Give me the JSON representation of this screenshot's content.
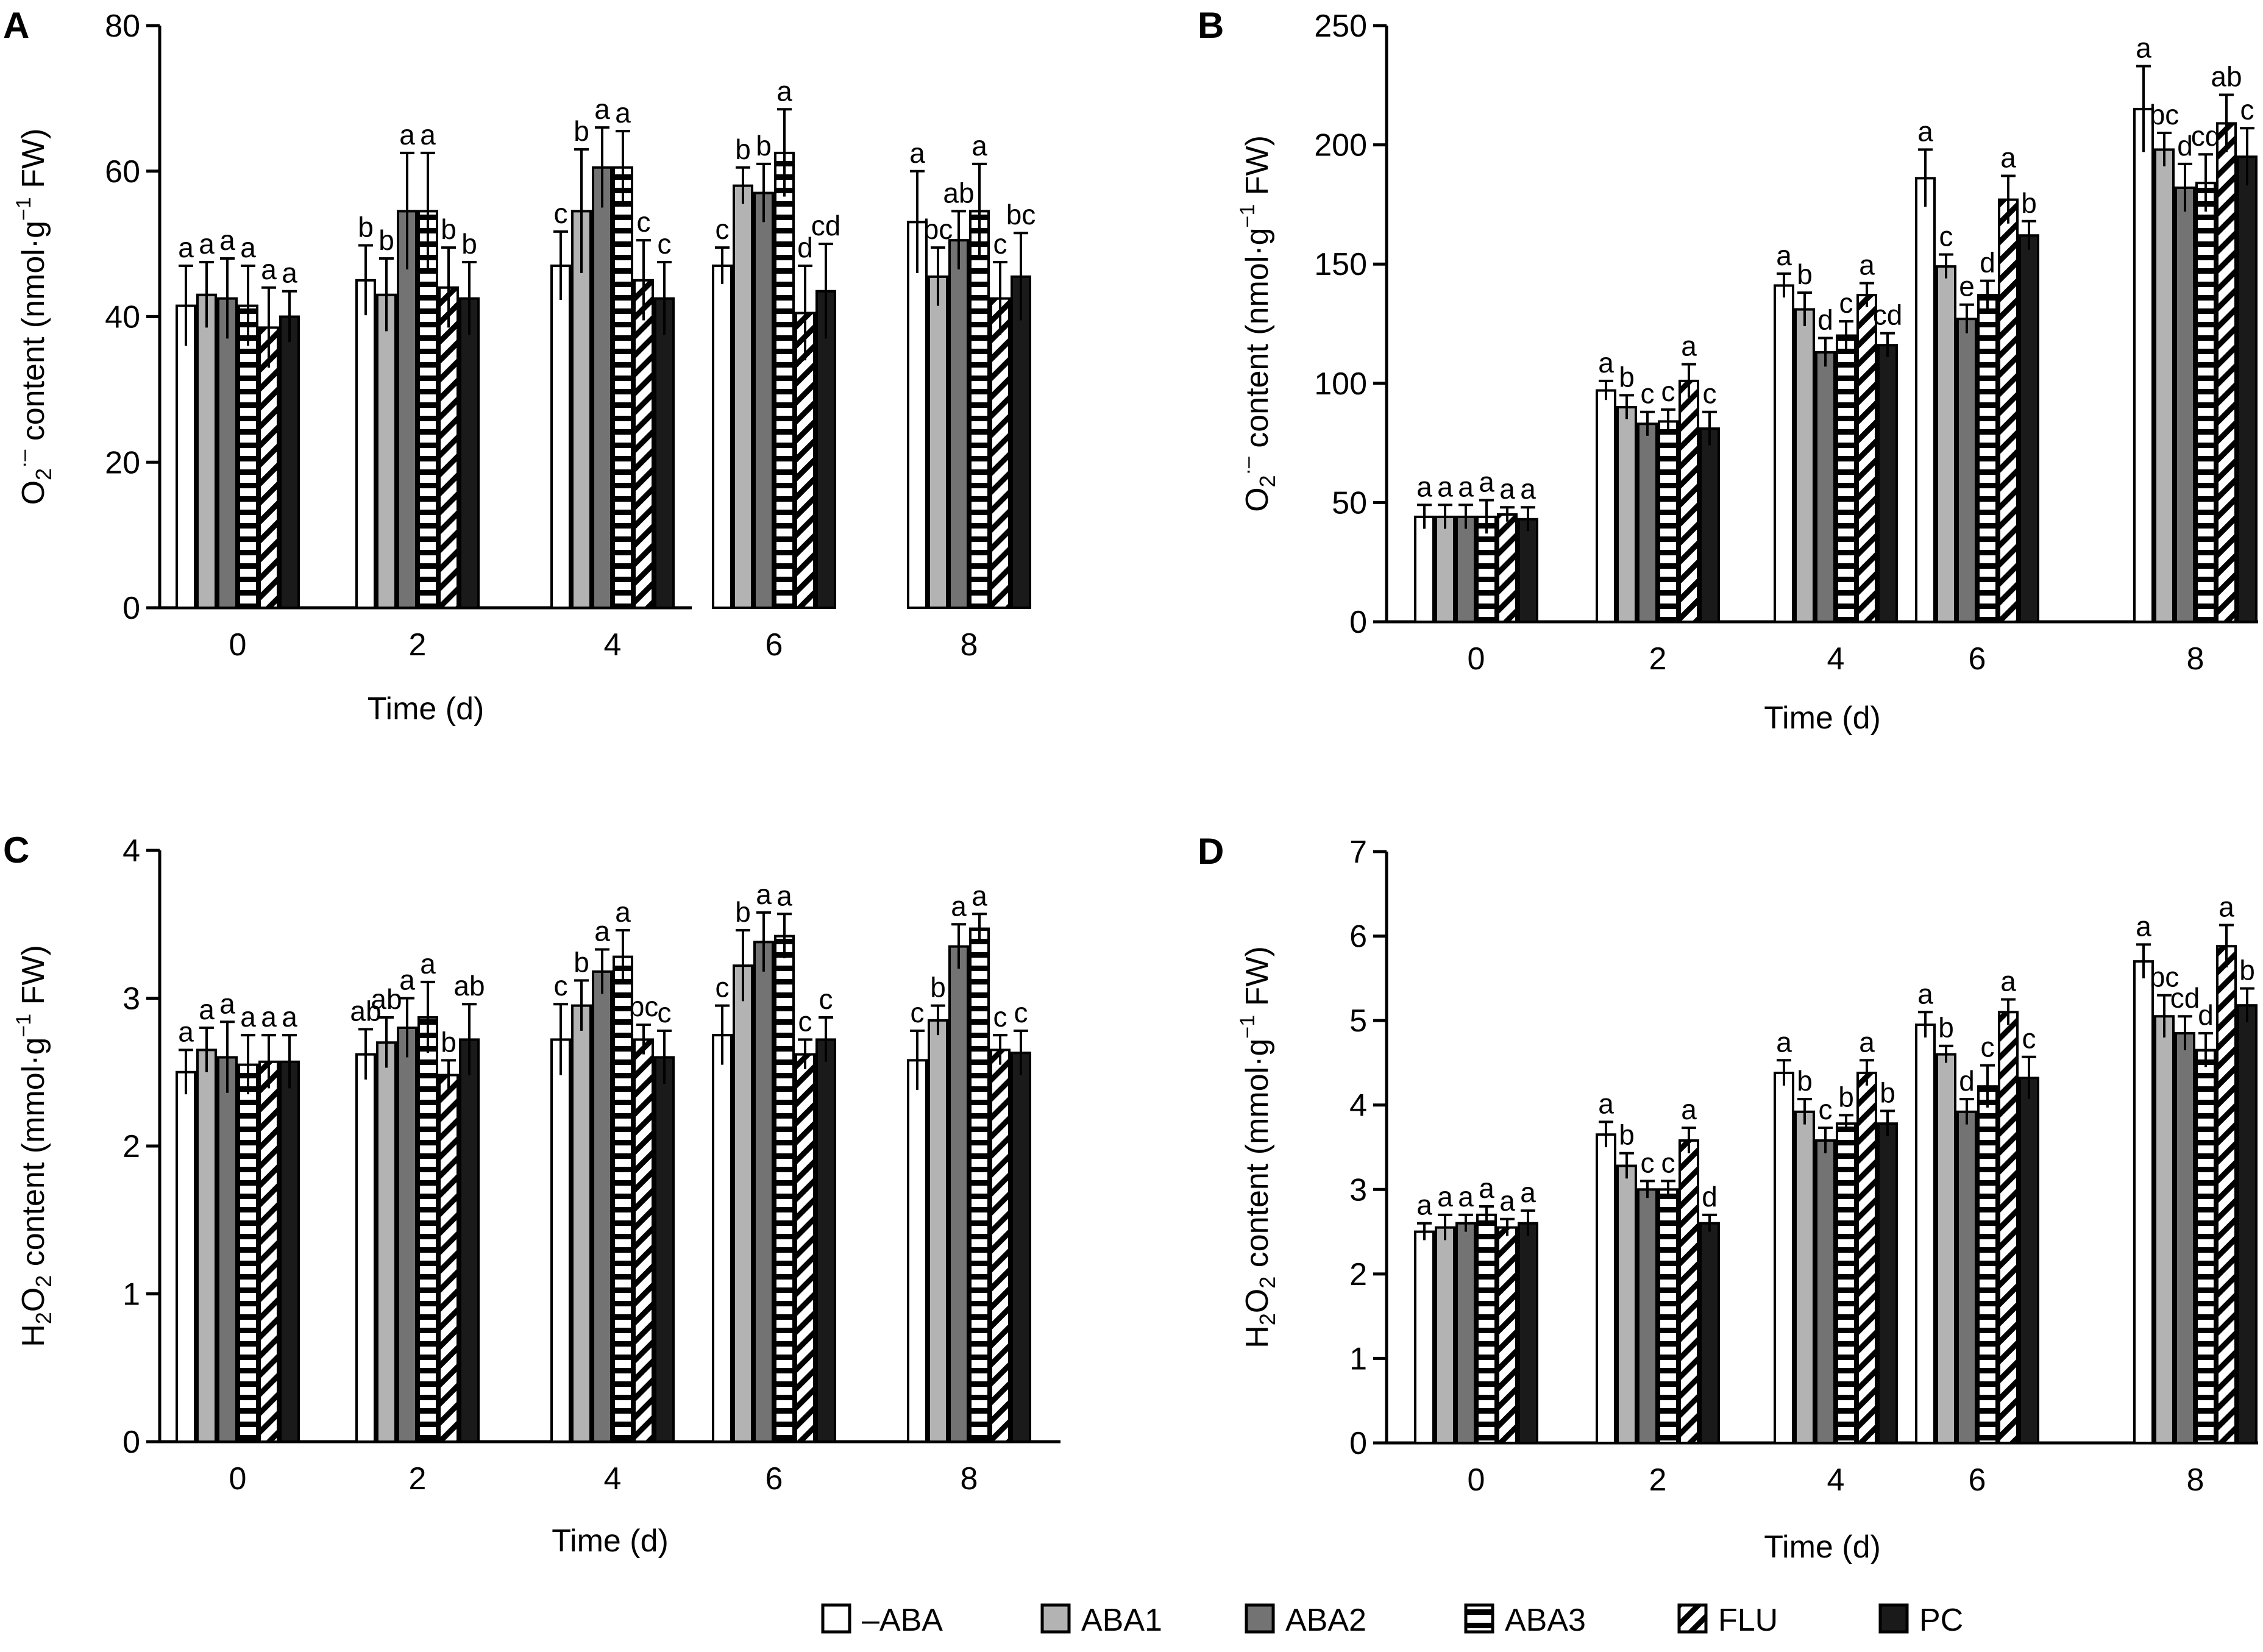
{
  "series_styles": [
    {
      "name": "–ABA",
      "fill": "#ffffff",
      "pattern": "none"
    },
    {
      "name": "ABA1",
      "fill": "#b3b3b3",
      "pattern": "none"
    },
    {
      "name": "ABA2",
      "fill": "#737373",
      "pattern": "none"
    },
    {
      "name": "ABA3",
      "fill": "#ffffff",
      "pattern": "horizontal-stripes"
    },
    {
      "name": "FLU",
      "fill": "#ffffff",
      "pattern": "diagonal-hatch"
    },
    {
      "name": "PC",
      "fill": "#1a1a1a",
      "pattern": "none"
    }
  ],
  "legend": {
    "items": [
      "–ABA",
      "ABA1",
      "ABA2",
      "ABA3",
      "FLU",
      "PC"
    ],
    "placement": "bottom-center"
  },
  "chart_data": [
    {
      "panel": "A",
      "type": "bar",
      "categories": [
        "0",
        "2",
        "4",
        "6",
        "8"
      ],
      "xlabel": "Time (d)",
      "ylabel": {
        "main": "O",
        "sub": "2",
        "sup": "·–",
        "rest": " content (nmol·g",
        "exp": "−1",
        "end": " FW)"
      },
      "ylim": [
        0,
        80
      ],
      "yticks": [
        "0",
        "20",
        "40",
        "60",
        "80"
      ],
      "grid": false,
      "series": [
        {
          "name": "–ABA",
          "values": [
            41.5,
            45,
            47,
            47,
            53
          ],
          "errors": [
            5.5,
            4.8,
            4.7,
            2.5,
            7
          ],
          "labels": [
            "a",
            "b",
            "c",
            "c",
            "a"
          ]
        },
        {
          "name": "ABA1",
          "values": [
            43,
            43,
            54.5,
            58,
            45.5
          ],
          "errors": [
            4.5,
            5,
            8.5,
            2.5,
            4
          ],
          "labels": [
            "a",
            "b",
            "b",
            "b",
            "bc"
          ]
        },
        {
          "name": "ABA2",
          "values": [
            42.5,
            54.5,
            60.5,
            57,
            50.5
          ],
          "errors": [
            5.5,
            8,
            5.5,
            4,
            4
          ],
          "labels": [
            "a",
            "a",
            "a",
            "b",
            "ab"
          ]
        },
        {
          "name": "ABA3",
          "values": [
            41.5,
            54.5,
            60.5,
            62.5,
            54.5
          ],
          "errors": [
            5.5,
            8,
            5,
            6,
            6.5
          ],
          "labels": [
            "a",
            "a",
            "a",
            "a",
            "a"
          ]
        },
        {
          "name": "FLU",
          "values": [
            38.5,
            44,
            45,
            40.5,
            42.5
          ],
          "errors": [
            5.5,
            5.5,
            5.5,
            6.5,
            5
          ],
          "labels": [
            "a",
            "b",
            "c",
            "d",
            "c"
          ]
        },
        {
          "name": "PC",
          "values": [
            40,
            42.5,
            42.5,
            43.5,
            45.5
          ],
          "errors": [
            3.5,
            5,
            5,
            6.5,
            6
          ],
          "labels": [
            "a",
            "b",
            "c",
            "cd",
            "bc"
          ]
        }
      ]
    },
    {
      "panel": "B",
      "type": "bar",
      "categories": [
        "0",
        "2",
        "4",
        "6",
        "8"
      ],
      "xlabel": "Time (d)",
      "ylabel": {
        "main": "O",
        "sub": "2",
        "sup": "·–",
        "rest": " content (nmol·g",
        "exp": "−1",
        "end": " FW)"
      },
      "ylim": [
        0,
        250
      ],
      "yticks": [
        "0",
        "50",
        "100",
        "150",
        "200",
        "250"
      ],
      "grid": false,
      "series": [
        {
          "name": "–ABA",
          "values": [
            44,
            97,
            141,
            186,
            215
          ],
          "errors": [
            5,
            4,
            5,
            12,
            18
          ],
          "labels": [
            "a",
            "a",
            "a",
            "a",
            "a"
          ]
        },
        {
          "name": "ABA1",
          "values": [
            44,
            90,
            131,
            149,
            198
          ],
          "errors": [
            5,
            5,
            7,
            5,
            7
          ],
          "labels": [
            "a",
            "b",
            "b",
            "c",
            "bc"
          ]
        },
        {
          "name": "ABA2",
          "values": [
            44,
            83,
            113,
            127,
            182
          ],
          "errors": [
            5,
            5,
            6,
            6,
            10
          ],
          "labels": [
            "a",
            "c",
            "d",
            "e",
            "d"
          ]
        },
        {
          "name": "ABA3",
          "values": [
            44,
            84,
            120,
            137,
            184
          ],
          "errors": [
            7,
            5,
            6,
            6,
            12
          ],
          "labels": [
            "a",
            "c",
            "c",
            "d",
            "cd"
          ]
        },
        {
          "name": "FLU",
          "values": [
            45,
            101,
            137,
            177,
            209
          ],
          "errors": [
            3,
            7,
            5,
            10,
            12
          ],
          "labels": [
            "a",
            "a",
            "a",
            "a",
            "ab"
          ]
        },
        {
          "name": "PC",
          "values": [
            43,
            81,
            116,
            162,
            195
          ],
          "errors": [
            5,
            7,
            5,
            6,
            12
          ],
          "labels": [
            "a",
            "c",
            "cd",
            "b",
            "c"
          ]
        }
      ]
    },
    {
      "panel": "C",
      "type": "bar",
      "categories": [
        "0",
        "2",
        "4",
        "6",
        "8"
      ],
      "xlabel": "Time (d)",
      "ylabel": {
        "main": "H",
        "sub": "2",
        "mid": "O",
        "sub2": "2",
        "rest": " content (mmol·g",
        "exp": "−1",
        "end": " FW)"
      },
      "ylim": [
        0,
        4
      ],
      "yticks": [
        "0",
        "1",
        "2",
        "3",
        "4"
      ],
      "grid": false,
      "series": [
        {
          "name": "–ABA",
          "values": [
            2.5,
            2.62,
            2.72,
            2.75,
            2.58
          ],
          "errors": [
            0.15,
            0.17,
            0.24,
            0.2,
            0.2
          ],
          "labels": [
            "a",
            "ab",
            "c",
            "c",
            "c"
          ]
        },
        {
          "name": "ABA1",
          "values": [
            2.65,
            2.7,
            2.95,
            3.22,
            2.85
          ],
          "errors": [
            0.15,
            0.17,
            0.17,
            0.24,
            0.1
          ],
          "labels": [
            "a",
            "ab",
            "b",
            "b",
            "b"
          ]
        },
        {
          "name": "ABA2",
          "values": [
            2.6,
            2.8,
            3.18,
            3.38,
            3.35
          ],
          "errors": [
            0.24,
            0.2,
            0.15,
            0.2,
            0.15
          ],
          "labels": [
            "a",
            "a",
            "a",
            "a",
            "a"
          ]
        },
        {
          "name": "ABA3",
          "values": [
            2.55,
            2.87,
            3.28,
            3.42,
            3.47
          ],
          "errors": [
            0.2,
            0.24,
            0.18,
            0.15,
            0.1
          ],
          "labels": [
            "a",
            "a",
            "a",
            "a",
            "a"
          ]
        },
        {
          "name": "FLU",
          "values": [
            2.57,
            2.48,
            2.72,
            2.62,
            2.65
          ],
          "errors": [
            0.18,
            0.1,
            0.1,
            0.1,
            0.1
          ],
          "labels": [
            "a",
            "b",
            "bc",
            "c",
            "c"
          ]
        },
        {
          "name": "PC",
          "values": [
            2.57,
            2.72,
            2.6,
            2.72,
            2.63
          ],
          "errors": [
            0.18,
            0.24,
            0.18,
            0.15,
            0.15
          ],
          "labels": [
            "a",
            "ab",
            "c",
            "c",
            "c"
          ]
        }
      ]
    },
    {
      "panel": "D",
      "type": "bar",
      "categories": [
        "0",
        "2",
        "4",
        "6",
        "8"
      ],
      "xlabel": "Time (d)",
      "ylabel": {
        "main": "H",
        "sub": "2",
        "mid": "O",
        "sub2": "2",
        "rest": " content (mmol·g",
        "exp": "−1",
        "end": " FW)"
      },
      "ylim": [
        0,
        7
      ],
      "yticks": [
        "0",
        "1",
        "2",
        "3",
        "4",
        "5",
        "6",
        "7"
      ],
      "grid": false,
      "series": [
        {
          "name": "–ABA",
          "values": [
            2.5,
            3.65,
            4.38,
            4.95,
            5.7
          ],
          "errors": [
            0.1,
            0.15,
            0.15,
            0.15,
            0.2
          ],
          "labels": [
            "a",
            "a",
            "a",
            "a",
            "a"
          ]
        },
        {
          "name": "ABA1",
          "values": [
            2.55,
            3.28,
            3.92,
            4.6,
            5.05
          ],
          "errors": [
            0.15,
            0.15,
            0.15,
            0.1,
            0.25
          ],
          "labels": [
            "a",
            "b",
            "b",
            "b",
            "bc"
          ]
        },
        {
          "name": "ABA2",
          "values": [
            2.6,
            3.0,
            3.58,
            3.92,
            4.85
          ],
          "errors": [
            0.1,
            0.1,
            0.15,
            0.15,
            0.2
          ],
          "labels": [
            "a",
            "c",
            "c",
            "d",
            "cd"
          ]
        },
        {
          "name": "ABA3",
          "values": [
            2.7,
            3.0,
            3.78,
            4.22,
            4.65
          ],
          "errors": [
            0.1,
            0.1,
            0.1,
            0.25,
            0.2
          ],
          "labels": [
            "a",
            "c",
            "b",
            "c",
            "d"
          ]
        },
        {
          "name": "FLU",
          "values": [
            2.55,
            3.58,
            4.38,
            5.1,
            5.88
          ],
          "errors": [
            0.1,
            0.15,
            0.15,
            0.15,
            0.25
          ],
          "labels": [
            "a",
            "a",
            "a",
            "a",
            "a"
          ]
        },
        {
          "name": "PC",
          "values": [
            2.6,
            2.6,
            3.78,
            4.32,
            5.18
          ],
          "errors": [
            0.15,
            0.1,
            0.15,
            0.25,
            0.2
          ],
          "labels": [
            "a",
            "d",
            "b",
            "c",
            "b"
          ]
        }
      ]
    }
  ]
}
